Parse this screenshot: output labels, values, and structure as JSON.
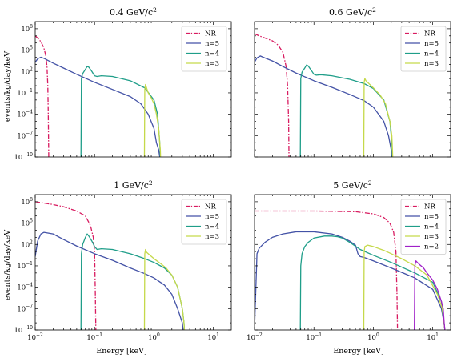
{
  "figure": {
    "xlabel": "Energy [keV]",
    "ylabel": "events/kg/day/keV",
    "x_ticks": [
      {
        "value": 0.01,
        "base": "10",
        "exp": "−2"
      },
      {
        "value": 0.1,
        "base": "10",
        "exp": "−1"
      },
      {
        "value": 1,
        "base": "10",
        "exp": "0"
      },
      {
        "value": 10,
        "base": "10",
        "exp": "1"
      }
    ],
    "y_ticks": [
      {
        "value": 1e-10,
        "base": "10",
        "exp": "−10"
      },
      {
        "value": 1e-07,
        "base": "10",
        "exp": "−7"
      },
      {
        "value": 0.0001,
        "base": "10",
        "exp": "−4"
      },
      {
        "value": 0.1,
        "base": "10",
        "exp": "−1"
      },
      {
        "value": 100,
        "base": "10",
        "exp": "2"
      },
      {
        "value": 100000.0,
        "base": "10",
        "exp": "5"
      },
      {
        "value": 100000000.0,
        "base": "10",
        "exp": "8"
      }
    ],
    "colors": {
      "NR": "#d81b60",
      "n=5": "#4352a6",
      "n=4": "#1f9e89",
      "n=3": "#c5d94a",
      "n=2": "#a020c8"
    }
  },
  "chart_data": [
    {
      "type": "line",
      "title": "0.4 GeV/c",
      "title_sup": "2",
      "xscale": "log",
      "yscale": "log",
      "xlim": [
        0.01,
        20
      ],
      "ylim": [
        1e-10,
        1000000000.0
      ],
      "legend": "top-right",
      "series": [
        {
          "name": "NR",
          "style": "dashdot",
          "x": [
            0.01,
            0.011,
            0.0125,
            0.014,
            0.015,
            0.0158,
            0.0163,
            0.0166,
            0.0168,
            0.0169
          ],
          "y": [
            10000000.0,
            5000000.0,
            1500000.0,
            200000.0,
            20000.0,
            500,
            1,
            0.0001,
            1e-08,
            1e-10
          ]
        },
        {
          "name": "n=5",
          "style": "solid",
          "x": [
            0.01,
            0.011,
            0.0125,
            0.014,
            0.02,
            0.03,
            0.05,
            0.1,
            0.2,
            0.4,
            0.6,
            0.8,
            1.0,
            1.1,
            1.2,
            1.25
          ],
          "y": [
            2000,
            6000,
            10000,
            7000,
            1500,
            300,
            40,
            3,
            0.3,
            0.03,
            0.003,
            0.0001,
            1e-06,
            1e-08,
            1e-09,
            1e-10
          ]
        },
        {
          "name": "n=4",
          "style": "solid",
          "x": [
            0.059,
            0.06,
            0.063,
            0.07,
            0.075,
            0.08,
            0.09,
            0.1,
            0.11,
            0.13,
            0.2,
            0.4,
            0.7,
            1.0,
            1.15,
            1.25,
            1.28
          ],
          "y": [
            1e-10,
            10,
            50,
            200,
            500,
            400,
            100,
            25,
            20,
            25,
            20,
            5,
            0.5,
            0.01,
            0.0001,
            1e-08,
            1e-10
          ]
        },
        {
          "name": "n=3",
          "style": "solid",
          "x": [
            0.69,
            0.7,
            0.72,
            0.75,
            0.8,
            0.9,
            1.0,
            1.1,
            1.2,
            1.25,
            1.28,
            1.29
          ],
          "y": [
            1e-10,
            0.3,
            1.5,
            0.5,
            0.1,
            0.02,
            0.003,
            0.0001,
            1e-06,
            1e-08,
            1e-09,
            1e-10
          ]
        }
      ]
    },
    {
      "type": "line",
      "title": "0.6 GeV/c",
      "title_sup": "2",
      "xscale": "log",
      "yscale": "log",
      "xlim": [
        0.01,
        20
      ],
      "ylim": [
        1e-10,
        1000000000.0
      ],
      "legend": "top-right",
      "series": [
        {
          "name": "NR",
          "style": "dashdot",
          "x": [
            0.01,
            0.012,
            0.015,
            0.02,
            0.025,
            0.03,
            0.034,
            0.036,
            0.0375,
            0.038
          ],
          "y": [
            20000000.0,
            10000000.0,
            5000000.0,
            2000000.0,
            500000.0,
            50000.0,
            500,
            1,
            1e-05,
            1e-10
          ]
        },
        {
          "name": "n=5",
          "style": "solid",
          "x": [
            0.01,
            0.011,
            0.0125,
            0.014,
            0.02,
            0.03,
            0.05,
            0.1,
            0.2,
            0.4,
            0.7,
            1.0,
            1.5,
            1.8,
            2.0,
            2.05
          ],
          "y": [
            2000,
            8000,
            15000,
            10000,
            3000,
            500,
            60,
            5,
            0.6,
            0.06,
            0.008,
            0.001,
            1e-05,
            1e-07,
            1e-09,
            1e-10
          ]
        },
        {
          "name": "n=4",
          "style": "solid",
          "x": [
            0.059,
            0.06,
            0.063,
            0.07,
            0.075,
            0.08,
            0.09,
            0.1,
            0.11,
            0.13,
            0.2,
            0.4,
            0.7,
            1.0,
            1.5,
            1.9,
            2.05,
            2.1
          ],
          "y": [
            1e-10,
            10,
            80,
            300,
            800,
            600,
            150,
            40,
            30,
            35,
            25,
            8,
            2,
            0.4,
            0.01,
            1e-05,
            1e-08,
            1e-10
          ]
        },
        {
          "name": "n=3",
          "style": "solid",
          "x": [
            0.69,
            0.7,
            0.72,
            0.75,
            0.8,
            1.0,
            1.3,
            1.6,
            1.9,
            2.05,
            2.1,
            2.12
          ],
          "y": [
            1e-10,
            3,
            10,
            5,
            3,
            0.5,
            0.05,
            0.003,
            1e-05,
            1e-07,
            1e-09,
            1e-10
          ]
        }
      ]
    },
    {
      "type": "line",
      "title": "1 GeV/c",
      "title_sup": "2",
      "xscale": "log",
      "yscale": "log",
      "xlim": [
        0.01,
        20
      ],
      "ylim": [
        1e-10,
        1000000000.0
      ],
      "legend": "top-right",
      "series": [
        {
          "name": "NR",
          "style": "dashdot",
          "x": [
            0.01,
            0.015,
            0.02,
            0.03,
            0.05,
            0.07,
            0.085,
            0.095,
            0.1,
            0.103,
            0.105
          ],
          "y": [
            100000000.0,
            60000000.0,
            40000000.0,
            20000000.0,
            5000000.0,
            1000000.0,
            50000.0,
            1000,
            10,
            1e-05,
            1e-10
          ]
        },
        {
          "name": "n=5",
          "style": "solid",
          "x": [
            0.01,
            0.011,
            0.0125,
            0.014,
            0.02,
            0.03,
            0.05,
            0.1,
            0.2,
            0.4,
            0.7,
            1.0,
            1.5,
            2.0,
            2.5,
            3.0,
            3.1
          ],
          "y": [
            2,
            300,
            3000,
            5000,
            3000,
            500,
            60,
            5,
            0.6,
            0.05,
            0.008,
            0.002,
            0.0002,
            1e-05,
            1e-07,
            1e-09,
            1e-10
          ]
        },
        {
          "name": "n=4",
          "style": "solid",
          "x": [
            0.059,
            0.06,
            0.063,
            0.07,
            0.075,
            0.08,
            0.09,
            0.1,
            0.11,
            0.13,
            0.2,
            0.4,
            0.7,
            1.0,
            1.5,
            2.0,
            2.5,
            3.0,
            3.2,
            3.25
          ],
          "y": [
            1e-10,
            5,
            100,
            1000,
            3000,
            1500,
            300,
            50,
            20,
            25,
            20,
            5,
            1,
            0.3,
            0.05,
            0.005,
            0.0001,
            1e-07,
            1e-09,
            1e-10
          ]
        },
        {
          "name": "n=3",
          "style": "solid",
          "x": [
            0.69,
            0.7,
            0.72,
            0.75,
            0.8,
            1.0,
            1.3,
            1.6,
            2.0,
            2.5,
            3.0,
            3.2,
            3.25
          ],
          "y": [
            1e-10,
            5,
            20,
            8,
            5,
            1,
            0.2,
            0.05,
            0.005,
            0.0001,
            1e-07,
            1e-09,
            1e-10
          ]
        }
      ]
    },
    {
      "type": "line",
      "title": "5 GeV/c",
      "title_sup": "2",
      "xscale": "log",
      "yscale": "log",
      "xlim": [
        0.01,
        20
      ],
      "ylim": [
        1e-10,
        1000000000.0
      ],
      "legend": "top-right",
      "series": [
        {
          "name": "NR",
          "style": "dashdot",
          "x": [
            0.01,
            0.1,
            0.5,
            1.0,
            1.5,
            1.9,
            2.2,
            2.4,
            2.5,
            2.55
          ],
          "y": [
            5000000.0,
            5000000.0,
            4000000.0,
            2000000.0,
            600000.0,
            100000.0,
            5000,
            10,
            1e-05,
            1e-10
          ]
        },
        {
          "name": "n=5",
          "style": "solid",
          "x": [
            0.01,
            0.011,
            0.012,
            0.015,
            0.02,
            0.03,
            0.05,
            0.1,
            0.2,
            0.3,
            0.4,
            0.5,
            0.55,
            0.6,
            0.7,
            1.0,
            2.0,
            5.0,
            10.0,
            14.0,
            15.5,
            16.0
          ],
          "y": [
            1e-10,
            5,
            30,
            200,
            1000,
            3000,
            6000,
            6000,
            3000,
            1000,
            300,
            80,
            5,
            2,
            1.5,
            0.5,
            0.05,
            0.002,
            5e-05,
            1e-07,
            1e-09,
            1e-10
          ]
        },
        {
          "name": "n=4",
          "style": "solid",
          "x": [
            0.059,
            0.06,
            0.063,
            0.07,
            0.08,
            0.1,
            0.15,
            0.2,
            0.25,
            0.3,
            0.4,
            0.6,
            1.0,
            2.0,
            5.0,
            10.0,
            14.0,
            15.5,
            16.0
          ],
          "y": [
            1e-10,
            0.1,
            5,
            50,
            200,
            800,
            1500,
            1500,
            1200,
            800,
            200,
            20,
            3,
            0.3,
            0.01,
            0.0005,
            1e-06,
            1e-09,
            1e-10
          ]
        },
        {
          "name": "n=3",
          "style": "solid",
          "x": [
            0.69,
            0.7,
            0.72,
            0.8,
            1.0,
            1.5,
            2.0,
            3.0,
            5.0,
            8.0,
            12.0,
            14.5,
            15.5,
            16.0
          ],
          "y": [
            1e-10,
            10,
            50,
            80,
            50,
            15,
            5,
            1,
            0.1,
            0.005,
            1e-05,
            1e-07,
            1e-09,
            1e-10
          ]
        },
        {
          "name": "n=2",
          "style": "solid",
          "x": [
            4.9,
            5.0,
            5.2,
            5.5,
            6.0,
            7.0,
            8.0,
            10.0,
            12.0,
            14.0,
            15.0,
            15.6,
            16.0
          ],
          "y": [
            1e-10,
            0.1,
            0.5,
            0.3,
            0.15,
            0.05,
            0.01,
            0.001,
            5e-05,
            1e-06,
            1e-07,
            1e-09,
            1e-10
          ]
        }
      ]
    }
  ]
}
